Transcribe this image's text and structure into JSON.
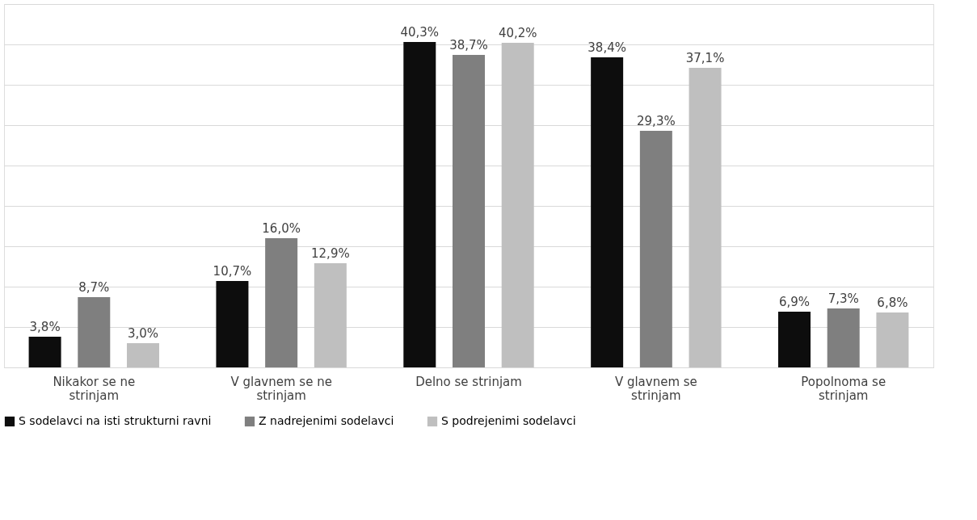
{
  "chart_data": {
    "type": "bar",
    "categories": [
      "Nikakor se ne strinjam",
      "V glavnem se ne strinjam",
      "Delno se strinjam",
      "V glavnem se strinjam",
      "Popolnoma se strinjam"
    ],
    "series": [
      {
        "name": "S sodelavci na isti strukturni ravni",
        "color": "#0d0d0d",
        "values": [
          3.8,
          10.7,
          40.3,
          38.4,
          6.9
        ],
        "value_labels": [
          "3,8%",
          "10,7%",
          "40,3%",
          "38,4%",
          "6,9%"
        ]
      },
      {
        "name": "Z nadrejenimi sodelavci",
        "color": "#7f7f7f",
        "values": [
          8.7,
          16.0,
          38.7,
          29.3,
          7.3
        ],
        "value_labels": [
          "8,7%",
          "16,0%",
          "38,7%",
          "29,3%",
          "7,3%"
        ]
      },
      {
        "name": "S podrejenimi sodelavci",
        "color": "#bfbfbf",
        "values": [
          3.0,
          12.9,
          40.2,
          37.1,
          6.8
        ],
        "value_labels": [
          "3,0%",
          "12,9%",
          "40,2%",
          "37,1%",
          "6,8%"
        ]
      }
    ],
    "ylim": [
      0,
      45
    ],
    "yticks": [
      {
        "value": 0,
        "label": null
      },
      {
        "value": 5,
        "label": null
      },
      {
        "value": 10,
        "label": null
      },
      {
        "value": 15,
        "label": null
      },
      {
        "value": 20,
        "label": null
      },
      {
        "value": 25,
        "label": null
      },
      {
        "value": 30,
        "label": null
      },
      {
        "value": 35,
        "label": null
      },
      {
        "value": 40,
        "label": null
      },
      {
        "value": 45,
        "label": null
      }
    ],
    "grid": "y",
    "legend": "bottom",
    "tick_labels": "x"
  }
}
